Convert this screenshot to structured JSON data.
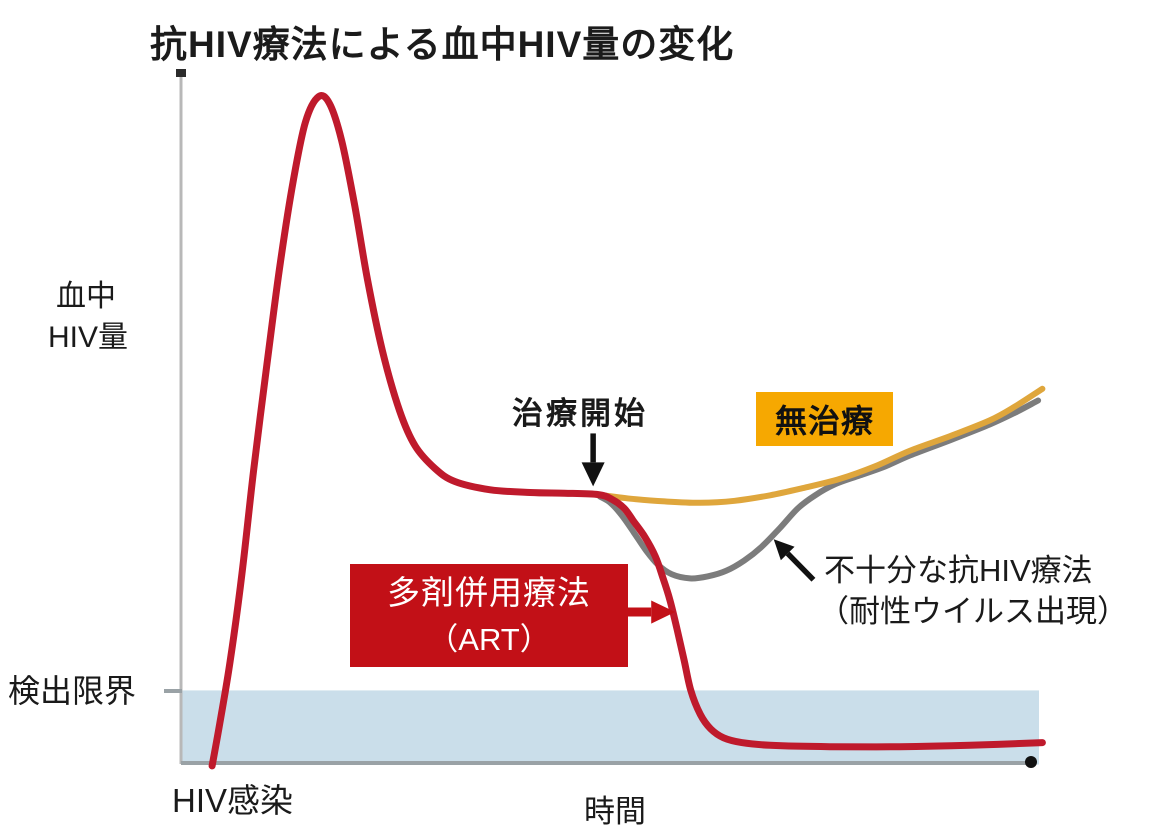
{
  "title": "抗HIV療法による血中HIV量の変化",
  "colors": {
    "red_curve": "#bf1a2c",
    "amber_curve": "#dfa63c",
    "gray_curve": "#7c7c7c",
    "no_treatment_bg": "#f6a801",
    "art_box_bg": "#c21017",
    "band": "#cadeea",
    "axis": "#9aa2a6",
    "y_axis": "#b8b8b8",
    "text": "#1a1a1a"
  },
  "labels": {
    "y_axis_line1": "血中",
    "y_axis_line2": "HIV量",
    "x_axis": "時間",
    "origin": "HIV感染",
    "detection_limit": "検出限界",
    "treatment_start": "治療開始",
    "no_treatment": "無治療",
    "art_line1": "多剤併用療法",
    "art_line2": "（ART）",
    "insufficient_line1": "不十分な抗HIV療法",
    "insufficient_line2": "（耐性ウイルス出現）"
  },
  "chart_data": {
    "type": "line",
    "title": "抗HIV療法による血中HIV量の変化",
    "xlabel": "時間",
    "ylabel": "血中HIV量",
    "axes_numeric": false,
    "x_unit": "relative time 0-100 (schematic)",
    "y_unit": "relative viral load 0-100 (schematic)",
    "xlim": [
      0,
      100
    ],
    "ylim": [
      0,
      100
    ],
    "grid": false,
    "legend": "inline annotations",
    "detection_limit_band": {
      "label": "検出限界",
      "y_min": 0,
      "y_max": 10.5,
      "color": "#cadeea"
    },
    "x_origin_event": "HIV感染",
    "treatment_start_x": 47.7,
    "series": [
      {
        "name": "多剤併用療法（ART）",
        "color": "#bf1a2c",
        "points": [
          [
            3.6,
            -0.5
          ],
          [
            4.5,
            5.8
          ],
          [
            5.7,
            14.8
          ],
          [
            7.1,
            27.9
          ],
          [
            8.4,
            42.5
          ],
          [
            10,
            58.5
          ],
          [
            11.5,
            72.8
          ],
          [
            13,
            84.7
          ],
          [
            14.4,
            93.2
          ],
          [
            15.9,
            96.9
          ],
          [
            17.2,
            95.9
          ],
          [
            18.6,
            90.5
          ],
          [
            20.1,
            81.1
          ],
          [
            21.6,
            70.2
          ],
          [
            23.3,
            60
          ],
          [
            25.3,
            51.2
          ],
          [
            27.1,
            46.1
          ],
          [
            29.4,
            42.8
          ],
          [
            31.7,
            40.9
          ],
          [
            35.8,
            39.7
          ],
          [
            40.4,
            39.3
          ],
          [
            44.4,
            39.2
          ],
          [
            48.3,
            39
          ],
          [
            49.9,
            38.3
          ],
          [
            51.3,
            37
          ],
          [
            52.4,
            35.1
          ],
          [
            53.7,
            32.8
          ],
          [
            54.9,
            30
          ],
          [
            55.8,
            26.8
          ],
          [
            56.6,
            23.6
          ],
          [
            57.4,
            19.5
          ],
          [
            58.2,
            15.1
          ],
          [
            59,
            10.5
          ],
          [
            60.1,
            7
          ],
          [
            61.3,
            4.9
          ],
          [
            62.8,
            3.6
          ],
          [
            64.9,
            2.9
          ],
          [
            68.2,
            2.5
          ],
          [
            75.1,
            2.3
          ],
          [
            83.2,
            2.3
          ],
          [
            91.3,
            2.5
          ],
          [
            99.7,
            2.9
          ]
        ]
      },
      {
        "name": "無治療",
        "color": "#dfa63c",
        "points": [
          [
            48.3,
            39
          ],
          [
            52,
            38.4
          ],
          [
            56,
            38
          ],
          [
            60.1,
            37.8
          ],
          [
            64.1,
            38.1
          ],
          [
            68.2,
            38.9
          ],
          [
            72.2,
            40
          ],
          [
            76.3,
            41.3
          ],
          [
            80.3,
            43.1
          ],
          [
            84.4,
            45.4
          ],
          [
            89,
            47.5
          ],
          [
            93.6,
            49.8
          ],
          [
            96.5,
            51.8
          ],
          [
            99.7,
            54.4
          ]
        ]
      },
      {
        "name": "不十分な抗HIV療法（耐性ウイルス出現）",
        "color": "#7c7c7c",
        "points": [
          [
            48.5,
            38.7
          ],
          [
            49.7,
            37.8
          ],
          [
            51,
            36
          ],
          [
            52.4,
            33.5
          ],
          [
            53.8,
            30.9
          ],
          [
            55.2,
            28.8
          ],
          [
            56.8,
            27.4
          ],
          [
            58.9,
            26.8
          ],
          [
            61,
            27.1
          ],
          [
            63.1,
            27.9
          ],
          [
            65.2,
            29.4
          ],
          [
            67.2,
            31.4
          ],
          [
            69.3,
            34.1
          ],
          [
            71.4,
            37
          ],
          [
            73.4,
            38.9
          ],
          [
            75.7,
            40.5
          ],
          [
            78.6,
            41.8
          ],
          [
            81.5,
            43.1
          ],
          [
            84.4,
            44.7
          ],
          [
            89,
            46.9
          ],
          [
            93.6,
            49.2
          ],
          [
            96.5,
            50.9
          ],
          [
            99.2,
            52.7
          ]
        ]
      }
    ],
    "annotations": [
      {
        "text": "治療開始",
        "arrow": {
          "from": [
            47.7,
            47.9
          ],
          "to": [
            47.7,
            40.2
          ],
          "color": "#111111",
          "lw": 5.5,
          "head": 24
        }
      },
      {
        "text": "多剤併用療法（ART）",
        "arrow": {
          "from": [
            51.6,
            21.9
          ],
          "to": [
            57.2,
            21.9
          ],
          "color": "#c21017",
          "lw": 9,
          "head": 24
        }
      },
      {
        "text": "不十分な抗HIV療法（耐性ウイルス出現）",
        "arrow": {
          "from": [
            73.2,
            26.6
          ],
          "to": [
            68.6,
            32.5
          ],
          "color": "#111111",
          "lw": 5.5,
          "head": 20
        }
      },
      {
        "text": "無治療",
        "type": "highlight-box",
        "color": "#f6a801"
      }
    ]
  }
}
